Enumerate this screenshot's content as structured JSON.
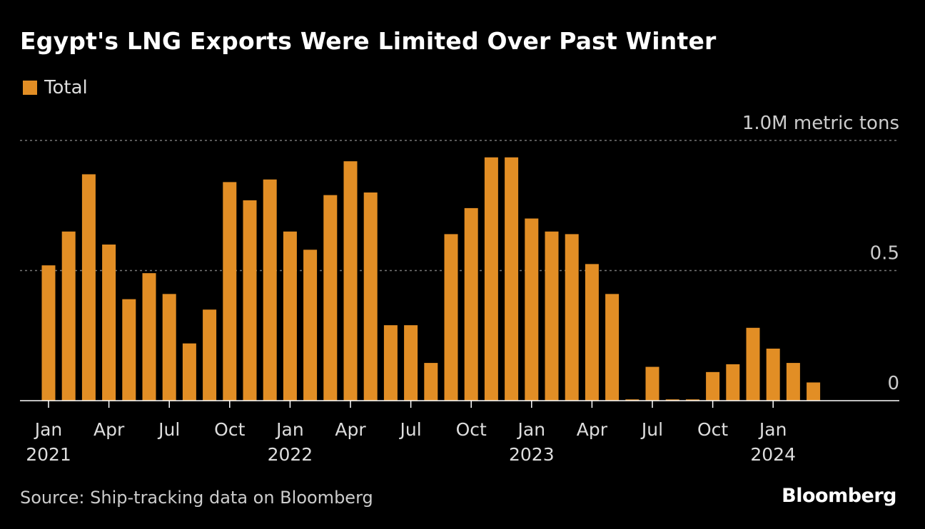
{
  "header": {
    "title": "Egypt's LNG Exports Were Limited Over Past Winter"
  },
  "legend": {
    "label": "Total"
  },
  "footer": {
    "source": "Source: Ship-tracking data on Bloomberg",
    "brand": "Bloomberg"
  },
  "colors": {
    "bar": "#e28e25",
    "grid": "#777777",
    "axis": "#ffffff"
  },
  "chart_data": {
    "type": "bar",
    "title": "Egypt's LNG Exports Were Limited Over Past Winter",
    "unit_label": "1.0M metric tons",
    "ylim": [
      0,
      1.0
    ],
    "yticks": [
      {
        "value": 1.0,
        "label": "1.0M metric tons"
      },
      {
        "value": 0.5,
        "label": "0.5"
      },
      {
        "value": 0,
        "label": "0"
      }
    ],
    "categories": [
      "2021-01",
      "2021-02",
      "2021-03",
      "2021-04",
      "2021-05",
      "2021-06",
      "2021-07",
      "2021-08",
      "2021-09",
      "2021-10",
      "2021-11",
      "2021-12",
      "2022-01",
      "2022-02",
      "2022-03",
      "2022-04",
      "2022-05",
      "2022-06",
      "2022-07",
      "2022-08",
      "2022-09",
      "2022-10",
      "2022-11",
      "2022-12",
      "2023-01",
      "2023-02",
      "2023-03",
      "2023-04",
      "2023-05",
      "2023-06",
      "2023-07",
      "2023-08",
      "2023-09",
      "2023-10",
      "2023-11",
      "2023-12",
      "2024-01",
      "2024-02",
      "2024-03"
    ],
    "series": [
      {
        "name": "Total",
        "values": [
          0.52,
          0.65,
          0.87,
          0.6,
          0.39,
          0.49,
          0.41,
          0.22,
          0.35,
          0.84,
          0.77,
          0.85,
          0.65,
          0.58,
          0.79,
          0.92,
          0.8,
          0.29,
          0.29,
          0.145,
          0.64,
          0.74,
          0.935,
          0.935,
          0.7,
          0.65,
          0.64,
          0.525,
          0.41,
          0.005,
          0.13,
          0.005,
          0.005,
          0.11,
          0.14,
          0.28,
          0.2,
          0.145,
          0.07
        ]
      }
    ],
    "xticks": [
      {
        "index": 0,
        "month": "Jan",
        "year": "2021"
      },
      {
        "index": 3,
        "month": "Apr",
        "year": ""
      },
      {
        "index": 6,
        "month": "Jul",
        "year": ""
      },
      {
        "index": 9,
        "month": "Oct",
        "year": ""
      },
      {
        "index": 12,
        "month": "Jan",
        "year": "2022"
      },
      {
        "index": 15,
        "month": "Apr",
        "year": ""
      },
      {
        "index": 18,
        "month": "Jul",
        "year": ""
      },
      {
        "index": 21,
        "month": "Oct",
        "year": ""
      },
      {
        "index": 24,
        "month": "Jan",
        "year": "2023"
      },
      {
        "index": 27,
        "month": "Apr",
        "year": ""
      },
      {
        "index": 30,
        "month": "Jul",
        "year": ""
      },
      {
        "index": 33,
        "month": "Oct",
        "year": ""
      },
      {
        "index": 36,
        "month": "Jan",
        "year": "2024"
      }
    ],
    "grid": true,
    "legend_position": "top-left"
  }
}
